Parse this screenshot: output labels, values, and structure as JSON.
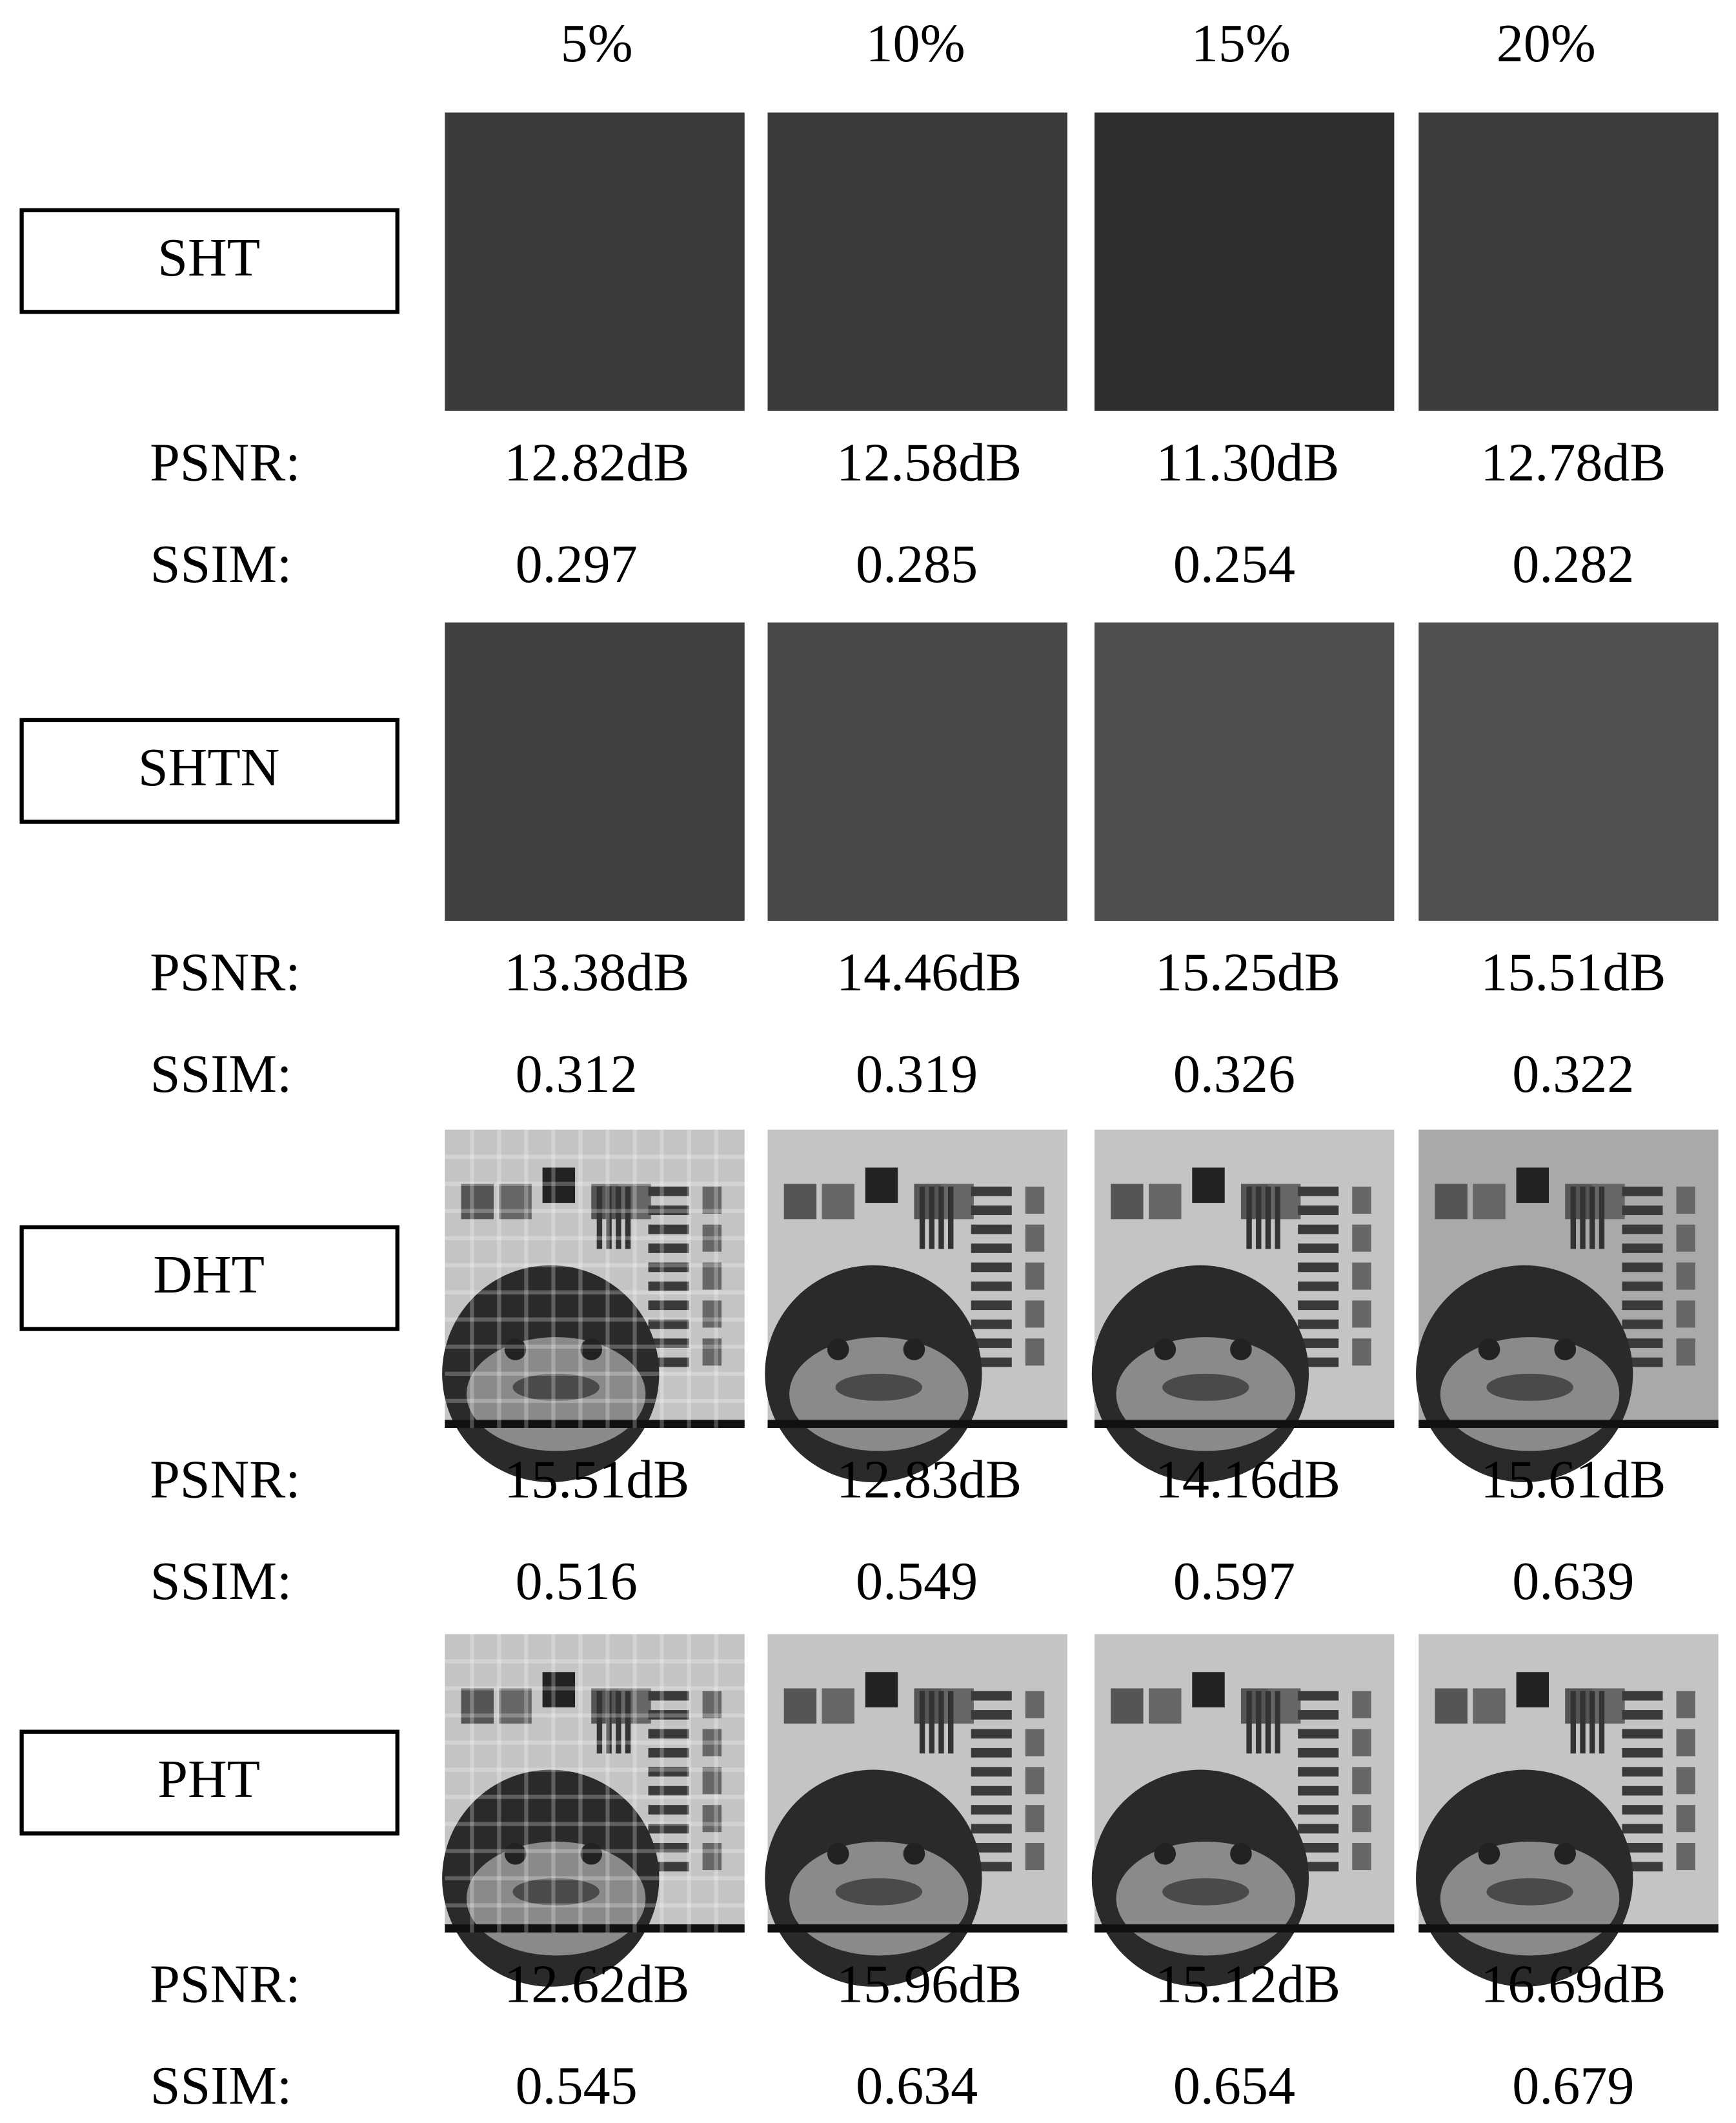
{
  "columns": [
    "5%",
    "10%",
    "15%",
    "20%"
  ],
  "psnr_label": "PSNR:",
  "ssim_label": "SSIM:",
  "rows": [
    {
      "method": "SHT",
      "psnr": [
        "12.82dB",
        "12.58dB",
        "11.30dB",
        "12.78dB"
      ],
      "ssim": [
        0.297,
        0.285,
        0.254,
        0.282
      ]
    },
    {
      "method": "SHTN",
      "psnr": [
        "13.38dB",
        "14.46dB",
        "15.25dB",
        "15.51dB"
      ],
      "ssim": [
        0.312,
        0.319,
        0.326,
        0.322
      ]
    },
    {
      "method": "DHT",
      "psnr": [
        "15.51dB",
        "12.83dB",
        "14.16dB",
        "15.61dB"
      ],
      "ssim": [
        0.516,
        0.549,
        0.597,
        0.639
      ]
    },
    {
      "method": "PHT",
      "color": "#e8141b",
      "psnr": [
        "12.62dB",
        "15.96dB",
        "15.12dB",
        "16.69dB"
      ],
      "ssim": [
        0.545,
        0.634,
        0.654,
        0.679
      ]
    }
  ]
}
